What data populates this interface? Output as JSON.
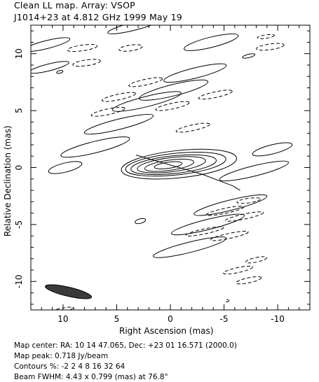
{
  "header": {
    "line1": "Clean LL map.  Array:  VSOP",
    "line2": "J1014+23 at 4.812 GHz 1999 May 19"
  },
  "footer": {
    "center": "Map center:  RA: 10 14 47.065,  Dec: +23 01 16.571 (2000.0)",
    "peak": "Map peak: 0.718 Jy/beam",
    "contours": "Contours %: -2 2 4 8 16 32 64",
    "beam": "Beam FWHM: 4.43 x 0.799 (mas) at 76.8°"
  },
  "chart_data": {
    "type": "contour",
    "xlabel": "Right Ascension  (mas)",
    "ylabel": "Relative Declination  (mas)",
    "xlim": [
      13,
      -13
    ],
    "ylim": [
      -12.5,
      12.5
    ],
    "xticks": [
      10,
      5,
      0,
      -5,
      -10
    ],
    "yticks": [
      10,
      5,
      0,
      -5,
      -10
    ],
    "contour_levels_percent": [
      -2,
      2,
      4,
      8,
      16,
      32,
      64
    ],
    "peak_jy_per_beam": 0.718,
    "map_center": {
      "ra": "10 14 47.065",
      "dec": "+23 01 16.571",
      "epoch": "2000.0"
    },
    "beam": {
      "major_mas": 4.43,
      "minor_mas": 0.799,
      "pa_deg": 76.8,
      "x": 9.5,
      "y": -10.9
    },
    "core_contours": [
      {
        "level": 2,
        "x": -0.8,
        "y": 0.3,
        "a": 5.4,
        "b": 1.2,
        "angle": -6
      },
      {
        "level": 4,
        "x": -0.5,
        "y": 0.3,
        "a": 4.7,
        "b": 0.95,
        "angle": -6
      },
      {
        "level": 8,
        "x": -0.3,
        "y": 0.25,
        "a": 4.0,
        "b": 0.78,
        "angle": -6
      },
      {
        "level": 16,
        "x": -0.1,
        "y": 0.25,
        "a": 3.2,
        "b": 0.62,
        "angle": -7
      },
      {
        "level": 32,
        "x": 0.1,
        "y": 0.2,
        "a": 2.3,
        "b": 0.45,
        "angle": -8
      },
      {
        "level": 64,
        "x": 0.2,
        "y": 0.2,
        "a": 1.3,
        "b": 0.27,
        "angle": -8
      }
    ],
    "jet_contour": {
      "level": 2,
      "points": [
        [
          3.2,
          1.1
        ],
        [
          -3,
          -0.6
        ],
        [
          -5.8,
          -1.6
        ],
        [
          -6.5,
          -2.0
        ]
      ]
    },
    "sidelobes": [
      {
        "sign": "positive",
        "x": 11.5,
        "y": 10.8,
        "a": 2.2,
        "b": 0.35,
        "angle": -14
      },
      {
        "sign": "positive",
        "x": 11.3,
        "y": 8.8,
        "a": 1.9,
        "b": 0.3,
        "angle": -14
      },
      {
        "sign": "negative",
        "x": 8.2,
        "y": 10.5,
        "a": 1.4,
        "b": 0.25,
        "angle": -8
      },
      {
        "sign": "negative",
        "x": 7.8,
        "y": 9.2,
        "a": 1.3,
        "b": 0.25,
        "angle": -8
      },
      {
        "sign": "negative",
        "x": 3.7,
        "y": 10.5,
        "a": 1.1,
        "b": 0.25,
        "angle": -8
      },
      {
        "sign": "positive",
        "x": 3.4,
        "y": 12.4,
        "a": 2.5,
        "b": 0.35,
        "angle": -14
      },
      {
        "sign": "positive",
        "x": -3.8,
        "y": 11.0,
        "a": 2.6,
        "b": 0.45,
        "angle": -14
      },
      {
        "sign": "negative",
        "x": -8.9,
        "y": 11.5,
        "a": 0.8,
        "b": 0.15,
        "angle": -8
      },
      {
        "sign": "negative",
        "x": -9.3,
        "y": 10.6,
        "a": 1.3,
        "b": 0.25,
        "angle": -8
      },
      {
        "sign": "positive",
        "x": -7.3,
        "y": 9.8,
        "a": 0.6,
        "b": 0.15,
        "angle": -14
      },
      {
        "sign": "positive",
        "x": -2.3,
        "y": 8.3,
        "a": 3.0,
        "b": 0.45,
        "angle": -14
      },
      {
        "sign": "positive",
        "x": -0.3,
        "y": 6.8,
        "a": 3.3,
        "b": 0.5,
        "angle": -14
      },
      {
        "sign": "positive",
        "x": 2.2,
        "y": 5.8,
        "a": 3.3,
        "b": 0.45,
        "angle": -14
      },
      {
        "sign": "positive",
        "x": 4.8,
        "y": 3.8,
        "a": 3.3,
        "b": 0.45,
        "angle": -14
      },
      {
        "sign": "positive",
        "x": 7.0,
        "y": 1.8,
        "a": 3.3,
        "b": 0.5,
        "angle": -14
      },
      {
        "sign": "positive",
        "x": 9.8,
        "y": 0.0,
        "a": 1.6,
        "b": 0.4,
        "angle": -14
      },
      {
        "sign": "negative",
        "x": 4.8,
        "y": 6.2,
        "a": 1.6,
        "b": 0.25,
        "angle": -12
      },
      {
        "sign": "negative",
        "x": 2.3,
        "y": 7.5,
        "a": 1.6,
        "b": 0.25,
        "angle": -12
      },
      {
        "sign": "negative",
        "x": -0.2,
        "y": 5.4,
        "a": 1.6,
        "b": 0.25,
        "angle": -12
      },
      {
        "sign": "negative",
        "x": -2.1,
        "y": 3.5,
        "a": 1.6,
        "b": 0.25,
        "angle": -12
      },
      {
        "sign": "negative",
        "x": -4.2,
        "y": 6.4,
        "a": 1.6,
        "b": 0.25,
        "angle": -12
      },
      {
        "sign": "negative",
        "x": 5.8,
        "y": 4.9,
        "a": 1.6,
        "b": 0.25,
        "angle": -12
      },
      {
        "sign": "positive",
        "x": -9.5,
        "y": 1.6,
        "a": 1.9,
        "b": 0.4,
        "angle": -14
      },
      {
        "sign": "positive",
        "x": -7.8,
        "y": -0.3,
        "a": 3.3,
        "b": 0.45,
        "angle": -14
      },
      {
        "sign": "negative",
        "x": -7.3,
        "y": -2.9,
        "a": 1.1,
        "b": 0.2,
        "angle": -8
      },
      {
        "sign": "positive",
        "x": -5.6,
        "y": -3.3,
        "a": 3.5,
        "b": 0.45,
        "angle": -14
      },
      {
        "sign": "positive",
        "x": -3.5,
        "y": -5.0,
        "a": 3.5,
        "b": 0.45,
        "angle": -14
      },
      {
        "sign": "positive",
        "x": -1.8,
        "y": -7.0,
        "a": 3.5,
        "b": 0.45,
        "angle": -14
      },
      {
        "sign": "negative",
        "x": -5.1,
        "y": -3.8,
        "a": 1.8,
        "b": 0.22,
        "angle": -12
      },
      {
        "sign": "negative",
        "x": -3.2,
        "y": -5.6,
        "a": 1.8,
        "b": 0.22,
        "angle": -12
      },
      {
        "sign": "negative",
        "x": -6.9,
        "y": -4.3,
        "a": 1.8,
        "b": 0.22,
        "angle": -12
      },
      {
        "sign": "negative",
        "x": -5.5,
        "y": -6.0,
        "a": 1.8,
        "b": 0.22,
        "angle": -12
      },
      {
        "sign": "negative",
        "x": -6.3,
        "y": -9.0,
        "a": 1.4,
        "b": 0.22,
        "angle": -12
      },
      {
        "sign": "negative",
        "x": -7.3,
        "y": -9.9,
        "a": 1.2,
        "b": 0.22,
        "angle": -12
      },
      {
        "sign": "negative",
        "x": -8.0,
        "y": -8.1,
        "a": 1.0,
        "b": 0.2,
        "angle": -12
      },
      {
        "sign": "negative",
        "x": -5.3,
        "y": -11.7,
        "a": 0.15,
        "b": 0.1,
        "angle": 0
      },
      {
        "sign": "positive",
        "x": 2.8,
        "y": -4.7,
        "a": 0.5,
        "b": 0.2,
        "angle": -14
      },
      {
        "sign": "positive",
        "x": 10.3,
        "y": 8.4,
        "a": 0.3,
        "b": 0.12,
        "angle": -14
      },
      {
        "sign": "negative",
        "x": 10.8,
        "y": -12.7,
        "a": 1.8,
        "b": 0.2,
        "angle": -14
      }
    ]
  }
}
